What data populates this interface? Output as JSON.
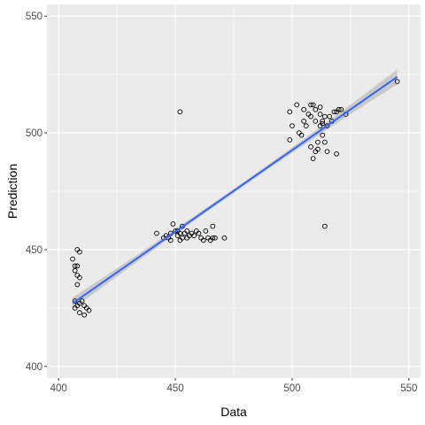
{
  "chart_data": {
    "type": "scatter",
    "title": "",
    "xlabel": "Data",
    "ylabel": "Prediction",
    "xlim": [
      395,
      555
    ],
    "ylim": [
      395,
      555
    ],
    "x_ticks": [
      400,
      450,
      500,
      550
    ],
    "y_ticks": [
      400,
      450,
      500,
      550
    ],
    "grid": true,
    "colors": {
      "panel": "#ebebeb",
      "grid_major": "#ffffff",
      "point_stroke": "#000000",
      "fit_line": "#3366ff",
      "confidence_band": "#bdbdbd"
    },
    "points": [
      [
        406,
        446
      ],
      [
        407,
        443
      ],
      [
        408,
        450
      ],
      [
        409,
        449
      ],
      [
        408,
        443
      ],
      [
        407,
        441
      ],
      [
        408,
        439
      ],
      [
        409,
        438
      ],
      [
        408,
        435
      ],
      [
        407,
        428
      ],
      [
        408,
        426
      ],
      [
        409,
        427
      ],
      [
        410,
        428
      ],
      [
        407,
        425
      ],
      [
        409,
        423
      ],
      [
        411,
        422
      ],
      [
        412,
        425
      ],
      [
        413,
        424
      ],
      [
        411,
        426
      ],
      [
        442,
        457
      ],
      [
        445,
        455
      ],
      [
        446,
        456
      ],
      [
        447,
        455
      ],
      [
        448,
        457
      ],
      [
        449,
        461
      ],
      [
        450,
        458
      ],
      [
        451,
        456
      ],
      [
        452,
        454
      ],
      [
        452,
        457
      ],
      [
        453,
        460
      ],
      [
        453,
        455
      ],
      [
        454,
        457
      ],
      [
        455,
        455
      ],
      [
        455,
        458
      ],
      [
        456,
        456
      ],
      [
        457,
        457
      ],
      [
        458,
        456
      ],
      [
        459,
        458
      ],
      [
        460,
        457
      ],
      [
        461,
        455
      ],
      [
        462,
        454
      ],
      [
        463,
        458
      ],
      [
        464,
        455
      ],
      [
        465,
        454
      ],
      [
        466,
        455
      ],
      [
        466,
        460
      ],
      [
        467,
        455
      ],
      [
        471,
        455
      ],
      [
        451,
        458
      ],
      [
        448,
        454
      ],
      [
        452,
        509
      ],
      [
        499,
        497
      ],
      [
        499,
        509
      ],
      [
        500,
        503
      ],
      [
        502,
        512
      ],
      [
        503,
        500
      ],
      [
        504,
        499
      ],
      [
        505,
        505
      ],
      [
        505,
        510
      ],
      [
        506,
        503
      ],
      [
        507,
        508
      ],
      [
        508,
        512
      ],
      [
        508,
        507
      ],
      [
        508,
        494
      ],
      [
        509,
        512
      ],
      [
        509,
        489
      ],
      [
        510,
        505
      ],
      [
        510,
        510
      ],
      [
        510,
        492
      ],
      [
        511,
        496
      ],
      [
        511,
        493
      ],
      [
        512,
        508
      ],
      [
        512,
        503
      ],
      [
        512,
        511
      ],
      [
        513,
        504
      ],
      [
        513,
        505
      ],
      [
        513,
        499
      ],
      [
        514,
        507
      ],
      [
        514,
        496
      ],
      [
        514,
        460
      ],
      [
        515,
        503
      ],
      [
        515,
        492
      ],
      [
        516,
        507
      ],
      [
        517,
        505
      ],
      [
        518,
        509
      ],
      [
        519,
        491
      ],
      [
        519,
        509
      ],
      [
        520,
        510
      ],
      [
        521,
        510
      ],
      [
        523,
        508
      ],
      [
        545,
        522
      ]
    ],
    "fit": {
      "x_start": 406,
      "x_end": 545,
      "y_start": 427,
      "y_end": 524
    },
    "band": {
      "half_width_start": 2.5,
      "half_width_mid": 0.9,
      "half_width_end": 3.2
    }
  }
}
